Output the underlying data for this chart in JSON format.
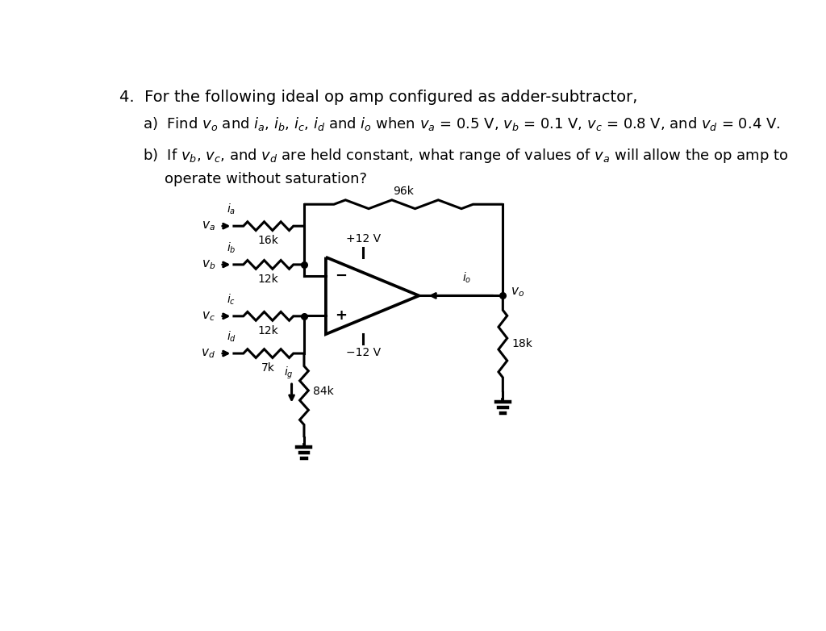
{
  "bg_color": "#ffffff",
  "line_color": "#000000",
  "lw": 2.2,
  "text_color": "#000000",
  "title": "4.  For the following ideal op amp configured as adder-subtractor,",
  "part_a": "a)  Find $v_o$ and $i_a$, $i_b$, $i_c$, $i_d$ and $i_o$ when $v_a$ = 0.5 V, $v_b$ = 0.1 V, $v_c$ = 0.8 V, and $v_d$ = 0.4 V.",
  "part_b1": "b)  If $v_b$, $v_c$, and $v_d$ are held constant, what range of values of $v_a$ will allow the op amp to",
  "part_b2": "operate without saturation?",
  "title_fontsize": 14,
  "text_fontsize": 13
}
